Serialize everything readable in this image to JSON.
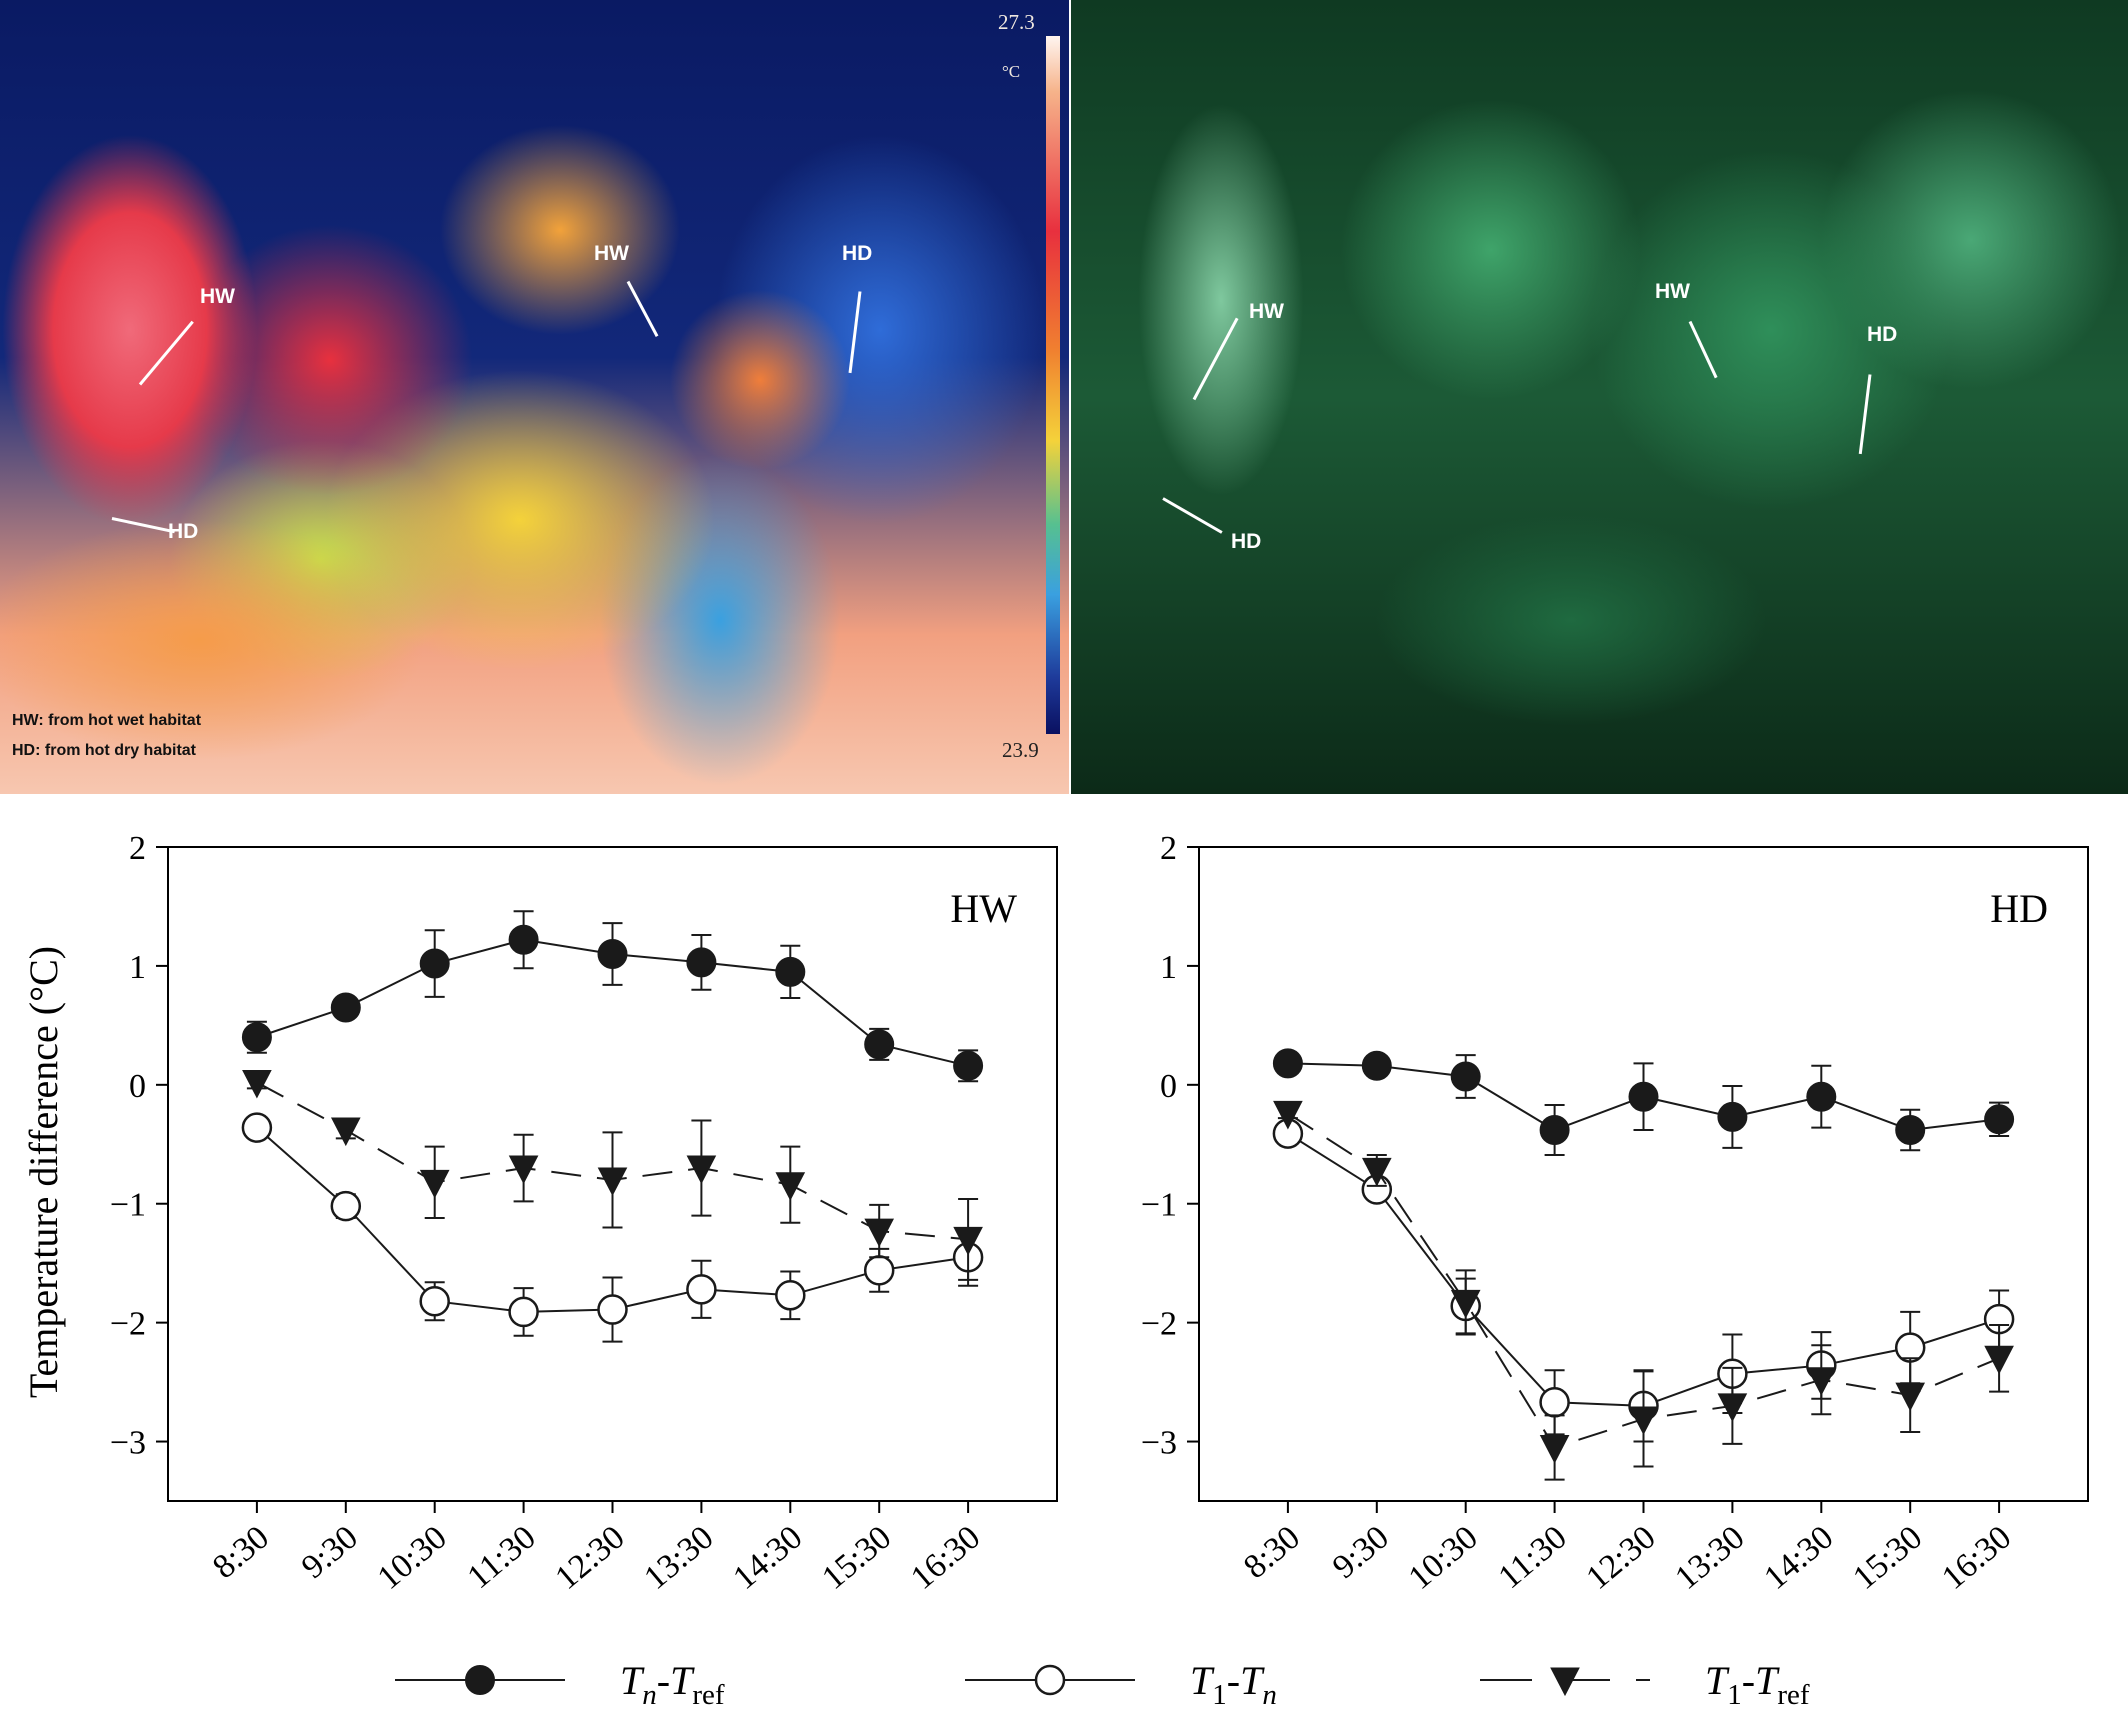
{
  "thermal_photo": {
    "labels": [
      "HW",
      "HD",
      "HW",
      "HD"
    ],
    "caption_lines": [
      "HW: from hot wet habitat",
      "HD: from hot dry habitat"
    ],
    "scale_max": "27.3",
    "scale_unit": "°C",
    "scale_min": "23.9"
  },
  "visible_photo": {
    "labels": [
      "HW",
      "HD",
      "HW",
      "HD"
    ]
  },
  "colors": {
    "series_line": "#1a1a1a",
    "axis": "#000000"
  },
  "chart_data": [
    {
      "type": "line",
      "panel_label": "HW",
      "ylabel": "Temperature difference (°C)",
      "ylim": [
        -3.5,
        2
      ],
      "yticks": [
        2,
        1,
        0,
        -1,
        -2,
        -3
      ],
      "ytick_labels": [
        "2",
        "1",
        "0",
        "−1",
        "−2",
        "−3"
      ],
      "categories": [
        "8:30",
        "9:30",
        "10:30",
        "11:30",
        "12:30",
        "13:30",
        "14:30",
        "15:30",
        "16:30"
      ],
      "series": [
        {
          "name": "Tn-Tref",
          "marker": "filled-circle",
          "dash": "solid",
          "values": [
            0.4,
            0.65,
            1.02,
            1.22,
            1.1,
            1.03,
            0.95,
            0.34,
            0.16
          ],
          "errors": [
            0.13,
            0.07,
            0.28,
            0.24,
            0.26,
            0.23,
            0.22,
            0.13,
            0.13
          ]
        },
        {
          "name": "T1-Tn",
          "marker": "open-circle",
          "dash": "solid",
          "values": [
            -0.36,
            -1.02,
            -1.82,
            -1.91,
            -1.89,
            -1.72,
            -1.77,
            -1.56,
            -1.45
          ],
          "errors": [
            0.05,
            0.1,
            0.16,
            0.2,
            0.27,
            0.24,
            0.2,
            0.18,
            0.24
          ]
        },
        {
          "name": "T1-Tref",
          "marker": "filled-triangle",
          "dash": "dashed",
          "values": [
            0.02,
            -0.38,
            -0.82,
            -0.7,
            -0.8,
            -0.7,
            -0.84,
            -1.23,
            -1.3
          ],
          "errors": [
            0.05,
            0.07,
            0.3,
            0.28,
            0.4,
            0.4,
            0.32,
            0.22,
            0.34
          ]
        }
      ]
    },
    {
      "type": "line",
      "panel_label": "HD",
      "ylim": [
        -3.5,
        2
      ],
      "yticks": [
        2,
        1,
        0,
        -1,
        -2,
        -3
      ],
      "ytick_labels": [
        "2",
        "1",
        "0",
        "−1",
        "−2",
        "−3"
      ],
      "categories": [
        "8:30",
        "9:30",
        "10:30",
        "11:30",
        "12:30",
        "13:30",
        "14:30",
        "15:30",
        "16:30"
      ],
      "series": [
        {
          "name": "Tn-Tref",
          "marker": "filled-circle",
          "dash": "solid",
          "values": [
            0.18,
            0.16,
            0.07,
            -0.38,
            -0.1,
            -0.27,
            -0.1,
            -0.38,
            -0.29
          ],
          "errors": [
            0.04,
            0.08,
            0.18,
            0.21,
            0.28,
            0.26,
            0.26,
            0.17,
            0.14
          ]
        },
        {
          "name": "T1-Tn",
          "marker": "open-circle",
          "dash": "solid",
          "values": [
            -0.41,
            -0.88,
            -1.86,
            -2.67,
            -2.7,
            -2.43,
            -2.36,
            -2.21,
            -1.97
          ],
          "errors": [
            0.04,
            0.08,
            0.23,
            0.27,
            0.3,
            0.33,
            0.28,
            0.3,
            0.24
          ]
        },
        {
          "name": "T1-Tref",
          "marker": "filled-triangle",
          "dash": "dashed",
          "values": [
            -0.24,
            -0.72,
            -1.83,
            -3.05,
            -2.81,
            -2.7,
            -2.48,
            -2.61,
            -2.3
          ],
          "errors": [
            0.04,
            0.13,
            0.27,
            0.27,
            0.4,
            0.32,
            0.29,
            0.31,
            0.28
          ]
        }
      ]
    }
  ],
  "legend": [
    {
      "marker": "filled-circle",
      "dash": "solid",
      "main1": "T",
      "sub1": "n",
      "sep": "-",
      "main2": "T",
      "sub2": "ref"
    },
    {
      "marker": "open-circle",
      "dash": "solid",
      "main1": "T",
      "sub1": "1",
      "sep": "-",
      "main2": "T",
      "sub2": "n"
    },
    {
      "marker": "filled-triangle",
      "dash": "dashed",
      "main1": "T",
      "sub1": "1",
      "sep": "-",
      "main2": "T",
      "sub2": "ref"
    }
  ]
}
